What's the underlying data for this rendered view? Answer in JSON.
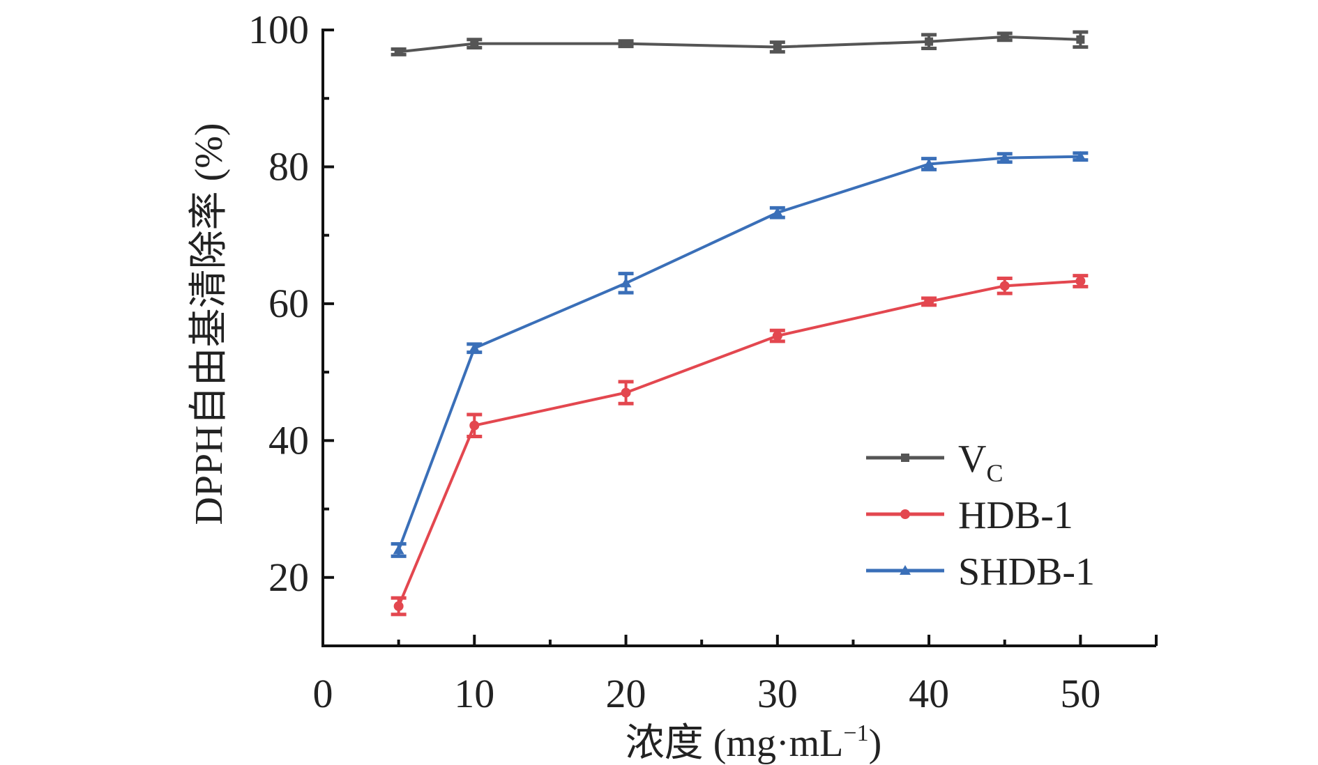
{
  "chart_data": {
    "type": "line",
    "title": "",
    "xlabel": "浓度 (mg·mL⁻¹)",
    "xlabel_main": "浓度 (mg·mL",
    "xlabel_sup": "−1",
    "xlabel_close": ")",
    "ylabel": "DPPH自由基清除率 (%)",
    "xlim": [
      0,
      55
    ],
    "ylim": [
      10,
      100
    ],
    "xticks": [
      0,
      10,
      20,
      30,
      40,
      50
    ],
    "xtick_labels": [
      "0",
      "10",
      "20",
      "30",
      "40",
      "50"
    ],
    "xminor": [
      5,
      15,
      25,
      35,
      45
    ],
    "yticks": [
      20,
      40,
      60,
      80,
      100
    ],
    "ytick_labels": [
      "20",
      "40",
      "60",
      "80",
      "100"
    ],
    "yminor": [
      30,
      50,
      70,
      90
    ],
    "grid": false,
    "legend_position": "lower-right",
    "x": [
      5,
      10,
      20,
      30,
      40,
      45,
      50
    ],
    "series": [
      {
        "name": "VC",
        "label_main": "V",
        "label_sub": "C",
        "color": "#555555",
        "marker": "square",
        "values": [
          96.8,
          98.0,
          98.0,
          97.5,
          98.3,
          99.0,
          98.6
        ],
        "errors": [
          0.4,
          0.6,
          0.4,
          0.7,
          1.0,
          0.5,
          1.1
        ]
      },
      {
        "name": "HDB-1",
        "label_main": "HDB-1",
        "label_sub": "",
        "color": "#e3474f",
        "marker": "circle",
        "values": [
          15.8,
          42.2,
          47.0,
          55.3,
          60.3,
          62.6,
          63.3
        ],
        "errors": [
          1.2,
          1.6,
          1.6,
          0.8,
          0.5,
          1.1,
          0.8
        ]
      },
      {
        "name": "SHDB-1",
        "label_main": "SHDB-1",
        "label_sub": "",
        "color": "#3a6fb8",
        "marker": "triangle",
        "values": [
          24.0,
          53.5,
          63.0,
          73.3,
          80.4,
          81.3,
          81.5
        ],
        "errors": [
          0.9,
          0.6,
          1.4,
          0.7,
          0.8,
          0.6,
          0.5
        ]
      }
    ]
  }
}
